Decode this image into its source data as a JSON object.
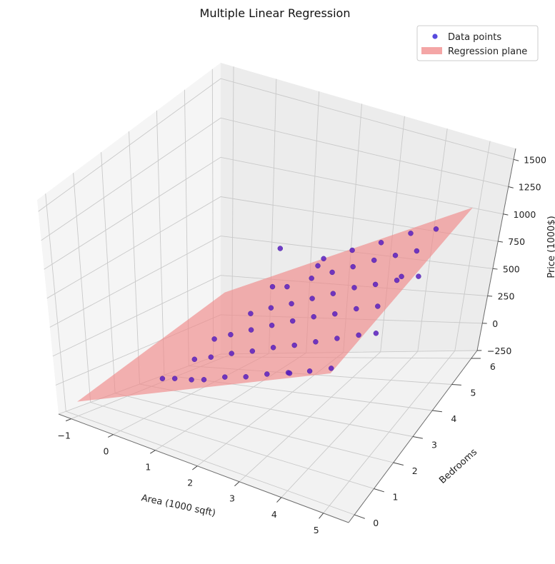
{
  "chart_data": {
    "type": "scatter",
    "title": "Multiple Linear Regression",
    "xlabel": "Area (1000 sqft)",
    "ylabel": "Bedrooms",
    "zlabel": "Price (1000$)",
    "xlim": [
      -1.3,
      5.6
    ],
    "ylim": [
      -0.3,
      6.3
    ],
    "zlim": [
      -250,
      1600
    ],
    "x_ticks": [
      "−1",
      "0",
      "1",
      "2",
      "3",
      "4",
      "5"
    ],
    "y_ticks": [
      "0",
      "1",
      "2",
      "3",
      "4",
      "5",
      "6"
    ],
    "z_ticks": [
      "−250",
      "0",
      "250",
      "500",
      "750",
      "1000",
      "1250",
      "1500"
    ],
    "grid": true,
    "legend": {
      "placement": "top-right",
      "entries": [
        {
          "label": "Data points",
          "kind": "marker",
          "color": "#3a2ad8"
        },
        {
          "label": "Regression plane",
          "kind": "patch",
          "color": "#f4a6a6"
        }
      ]
    },
    "marker_color": "#5b1fbf",
    "plane_color": "#f08a8a",
    "plane": {
      "intercept": 20,
      "coef_x": 150,
      "coef_y": 50
    },
    "series": [
      {
        "name": "Data points",
        "points": [
          [
            0.5,
            1,
            120
          ],
          [
            0.8,
            1,
            150
          ],
          [
            1.2,
            1,
            180
          ],
          [
            1.5,
            1,
            210
          ],
          [
            2.0,
            1,
            280
          ],
          [
            2.5,
            1,
            330
          ],
          [
            3.0,
            1,
            400
          ],
          [
            3.5,
            1,
            460
          ],
          [
            4.0,
            1,
            520
          ],
          [
            4.5,
            1,
            590
          ],
          [
            0.7,
            2,
            170
          ],
          [
            1.1,
            2,
            220
          ],
          [
            1.6,
            2,
            290
          ],
          [
            2.1,
            2,
            350
          ],
          [
            2.6,
            2,
            420
          ],
          [
            3.1,
            2,
            480
          ],
          [
            3.6,
            2,
            550
          ],
          [
            4.1,
            2,
            620
          ],
          [
            4.6,
            2,
            690
          ],
          [
            5.0,
            2,
            740
          ],
          [
            0.6,
            3,
            200
          ],
          [
            1.0,
            3,
            260
          ],
          [
            1.5,
            3,
            330
          ],
          [
            2.0,
            3,
            400
          ],
          [
            2.5,
            3,
            470
          ],
          [
            3.0,
            3,
            540
          ],
          [
            3.5,
            3,
            600
          ],
          [
            4.0,
            3,
            680
          ],
          [
            4.5,
            3,
            740
          ],
          [
            0.9,
            4,
            290
          ],
          [
            1.4,
            4,
            360
          ],
          [
            1.9,
            4,
            420
          ],
          [
            2.4,
            4,
            490
          ],
          [
            2.9,
            4,
            560
          ],
          [
            3.4,
            4,
            640
          ],
          [
            3.9,
            4,
            700
          ],
          [
            4.4,
            4,
            770
          ],
          [
            4.9,
            4,
            840
          ],
          [
            1.2,
            5,
            380
          ],
          [
            1.8,
            5,
            470
          ],
          [
            2.3,
            5,
            540
          ],
          [
            2.8,
            5,
            610
          ],
          [
            3.3,
            5,
            690
          ],
          [
            3.8,
            5,
            760
          ],
          [
            4.3,
            5,
            830
          ],
          [
            1.5,
            6,
            470
          ],
          [
            2.2,
            6,
            560
          ],
          [
            2.9,
            6,
            650
          ],
          [
            3.6,
            6,
            760
          ],
          [
            4.2,
            6,
            830
          ],
          [
            2.0,
            3,
            700
          ],
          [
            3.0,
            2,
            250
          ],
          [
            1.0,
            5,
            650
          ],
          [
            4.0,
            5,
            600
          ],
          [
            2.5,
            4,
            750
          ]
        ]
      }
    ]
  }
}
